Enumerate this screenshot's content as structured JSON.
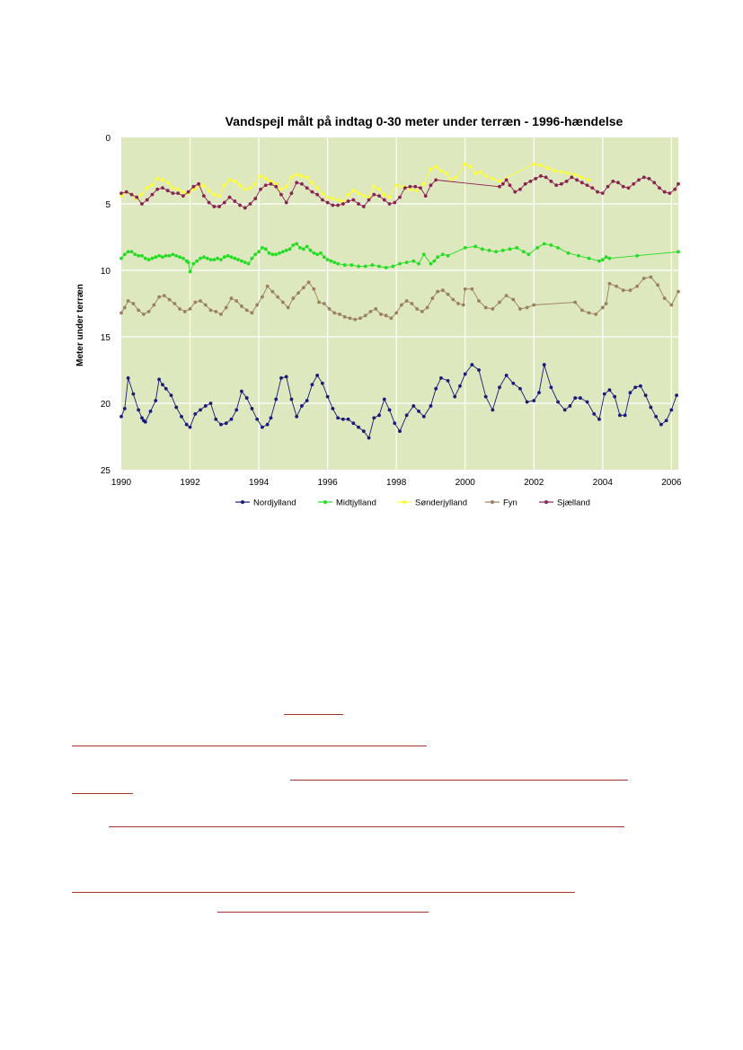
{
  "chart_data": {
    "type": "line",
    "title": "Vandspejl målt på indtag 0-30 meter under terræn  - 1996-hændelse",
    "ylabel": "Meter under terræn",
    "xlabel": "",
    "xlim": [
      1990,
      2006.2
    ],
    "ylim": [
      0,
      25
    ],
    "y_inverted": true,
    "x_ticks": [
      "1990",
      "1992",
      "1994",
      "1996",
      "1998",
      "2000",
      "2002",
      "2004",
      "2006"
    ],
    "y_ticks": [
      "0",
      "5",
      "10",
      "15",
      "20",
      "25"
    ],
    "grid": true,
    "legend_position": "bottom",
    "plot_background": "#dde8be",
    "series": [
      {
        "name": "Nordjylland",
        "color": "#1a1a7a",
        "x": [
          1990.0,
          1990.1,
          1990.2,
          1990.35,
          1990.5,
          1990.6,
          1990.65,
          1990.7,
          1990.85,
          1991.0,
          1991.1,
          1991.2,
          1991.3,
          1991.45,
          1991.6,
          1991.75,
          1991.9,
          1992.0,
          1992.15,
          1992.3,
          1992.45,
          1992.6,
          1992.75,
          1992.9,
          1993.05,
          1993.2,
          1993.35,
          1993.5,
          1993.65,
          1993.8,
          1993.95,
          1994.1,
          1994.25,
          1994.35,
          1994.5,
          1994.65,
          1994.8,
          1994.95,
          1995.1,
          1995.25,
          1995.4,
          1995.55,
          1995.7,
          1995.85,
          1996.0,
          1996.15,
          1996.3,
          1996.45,
          1996.6,
          1996.75,
          1996.9,
          1997.05,
          1997.2,
          1997.35,
          1997.5,
          1997.65,
          1997.8,
          1997.95,
          1998.1,
          1998.3,
          1998.5,
          1998.65,
          1998.8,
          1999.0,
          1999.15,
          1999.3,
          1999.5,
          1999.7,
          1999.85,
          2000.0,
          2000.2,
          2000.4,
          2000.6,
          2000.8,
          2001.0,
          2001.2,
          2001.4,
          2001.6,
          2001.8,
          2002.0,
          2002.15,
          2002.3,
          2002.5,
          2002.7,
          2002.9,
          2003.05,
          2003.2,
          2003.35,
          2003.55,
          2003.75,
          2003.9,
          2004.05,
          2004.2,
          2004.35,
          2004.5,
          2004.65,
          2004.8,
          2004.95,
          2005.1,
          2005.25,
          2005.4,
          2005.55,
          2005.7,
          2005.85,
          2006.0,
          2006.15
        ],
        "values": [
          21.0,
          20.4,
          18.1,
          19.3,
          20.5,
          21.1,
          21.3,
          21.4,
          20.6,
          19.8,
          18.2,
          18.6,
          18.9,
          19.4,
          20.3,
          21.0,
          21.6,
          21.8,
          20.8,
          20.5,
          20.2,
          20.0,
          21.2,
          21.6,
          21.5,
          21.2,
          20.5,
          19.1,
          19.6,
          20.4,
          21.2,
          21.8,
          21.6,
          21.1,
          19.7,
          18.1,
          18.0,
          19.7,
          21.0,
          20.2,
          19.8,
          18.6,
          17.9,
          18.5,
          19.5,
          20.4,
          21.1,
          21.2,
          21.2,
          21.5,
          21.8,
          22.1,
          22.6,
          21.1,
          20.9,
          19.7,
          20.5,
          21.5,
          22.1,
          20.9,
          20.2,
          20.6,
          21.0,
          20.2,
          18.9,
          18.1,
          18.3,
          19.5,
          18.7,
          17.8,
          17.1,
          17.5,
          19.5,
          20.5,
          18.8,
          17.9,
          18.5,
          18.9,
          19.9,
          19.8,
          19.2,
          17.1,
          18.8,
          19.9,
          20.5,
          20.2,
          19.6,
          19.6,
          19.9,
          20.8,
          21.2,
          19.3,
          19.0,
          19.5,
          20.9,
          20.9,
          19.2,
          18.8,
          18.7,
          19.4,
          20.3,
          21.0,
          21.6,
          21.3,
          20.5,
          19.4
        ]
      },
      {
        "name": "Midtjylland",
        "color": "#22dd22",
        "x": [
          1990.0,
          1990.1,
          1990.2,
          1990.3,
          1990.4,
          1990.5,
          1990.6,
          1990.7,
          1990.8,
          1990.9,
          1991.0,
          1991.1,
          1991.2,
          1991.3,
          1991.4,
          1991.5,
          1991.6,
          1991.7,
          1991.8,
          1991.9,
          1991.95,
          1992.0,
          1992.1,
          1992.2,
          1992.3,
          1992.4,
          1992.5,
          1992.6,
          1992.7,
          1992.8,
          1992.9,
          1993.0,
          1993.1,
          1993.2,
          1993.3,
          1993.4,
          1993.5,
          1993.6,
          1993.7,
          1993.8,
          1993.9,
          1994.0,
          1994.1,
          1994.2,
          1994.3,
          1994.4,
          1994.5,
          1994.6,
          1994.7,
          1994.8,
          1994.9,
          1995.0,
          1995.1,
          1995.2,
          1995.3,
          1995.4,
          1995.5,
          1995.6,
          1995.7,
          1995.8,
          1995.9,
          1996.0,
          1996.1,
          1996.2,
          1996.3,
          1996.5,
          1996.7,
          1996.9,
          1997.1,
          1997.3,
          1997.5,
          1997.7,
          1997.9,
          1998.1,
          1998.3,
          1998.5,
          1998.65,
          1998.8,
          1999.0,
          1999.1,
          1999.2,
          1999.35,
          1999.5,
          2000.0,
          2000.3,
          2000.5,
          2000.7,
          2000.9,
          2001.1,
          2001.3,
          2001.5,
          2001.7,
          2001.85,
          2002.1,
          2002.3,
          2002.5,
          2002.7,
          2003.0,
          2003.3,
          2003.6,
          2003.9,
          2004.0,
          2004.1,
          2004.2,
          2005.0,
          2006.2
        ],
        "values": [
          9.1,
          8.8,
          8.6,
          8.6,
          8.8,
          8.9,
          8.9,
          9.1,
          9.2,
          9.1,
          9.0,
          8.9,
          9.0,
          8.9,
          8.9,
          8.8,
          8.9,
          9.0,
          9.1,
          9.3,
          9.4,
          10.1,
          9.5,
          9.3,
          9.1,
          9.0,
          9.1,
          9.2,
          9.2,
          9.1,
          9.2,
          9.0,
          8.9,
          9.0,
          9.1,
          9.2,
          9.3,
          9.4,
          9.5,
          9.1,
          8.8,
          8.6,
          8.3,
          8.4,
          8.7,
          8.8,
          8.8,
          8.7,
          8.6,
          8.5,
          8.4,
          8.1,
          8.0,
          8.3,
          8.4,
          8.2,
          8.5,
          8.7,
          8.8,
          8.7,
          9.0,
          9.2,
          9.3,
          9.4,
          9.5,
          9.6,
          9.6,
          9.7,
          9.7,
          9.6,
          9.7,
          9.8,
          9.7,
          9.5,
          9.4,
          9.3,
          9.5,
          8.8,
          9.5,
          9.3,
          9.0,
          8.8,
          8.9,
          8.3,
          8.2,
          8.4,
          8.5,
          8.6,
          8.5,
          8.4,
          8.3,
          8.6,
          8.8,
          8.3,
          8.0,
          8.1,
          8.3,
          8.7,
          8.9,
          9.1,
          9.3,
          9.2,
          9.0,
          9.1,
          8.9,
          8.6
        ]
      },
      {
        "name": "Sønderjylland",
        "color": "#ffff33",
        "x": [
          1990.0,
          1990.15,
          1990.3,
          1990.45,
          1990.6,
          1990.75,
          1990.9,
          1991.05,
          1991.2,
          1991.35,
          1991.5,
          1991.65,
          1991.8,
          1991.95,
          1992.1,
          1992.25,
          1992.4,
          1992.55,
          1992.7,
          1992.85,
          1993.0,
          1993.15,
          1993.3,
          1993.45,
          1993.6,
          1993.75,
          1993.9,
          1994.05,
          1994.2,
          1994.35,
          1994.5,
          1994.65,
          1994.8,
          1994.95,
          1995.1,
          1995.25,
          1995.4,
          1995.55,
          1995.7,
          1995.85,
          1996.0,
          1996.15,
          1996.3,
          1996.45,
          1996.6,
          1996.75,
          1996.9,
          1997.05,
          1997.2,
          1997.35,
          1997.5,
          1997.65,
          1997.8,
          1998.0,
          1998.2,
          1998.4,
          1998.6,
          1998.8,
          1999.0,
          1999.15,
          1999.3,
          1999.45,
          1999.6,
          1999.75,
          2000.0,
          2000.15,
          2000.3,
          2000.45,
          2000.6,
          2000.8,
          2001.0,
          2002.0,
          2002.2,
          2002.4,
          2002.6,
          2002.8,
          2003.0,
          2003.2,
          2003.4,
          2003.6
        ],
        "values": [
          4.4,
          4.1,
          4.3,
          4.6,
          4.3,
          3.8,
          3.6,
          3.1,
          3.2,
          3.4,
          3.8,
          3.9,
          4.1,
          4.2,
          3.9,
          3.7,
          3.6,
          4.0,
          4.3,
          4.4,
          3.6,
          3.2,
          3.3,
          3.6,
          3.9,
          3.8,
          3.5,
          2.9,
          3.1,
          3.3,
          3.5,
          3.9,
          3.7,
          3.0,
          2.8,
          2.9,
          3.0,
          3.4,
          3.8,
          4.2,
          4.5,
          4.6,
          4.7,
          4.8,
          4.3,
          4.0,
          4.2,
          4.4,
          4.5,
          3.7,
          3.9,
          4.3,
          4.5,
          3.6,
          3.7,
          3.9,
          4.0,
          3.5,
          2.4,
          2.2,
          2.5,
          2.7,
          3.2,
          3.0,
          2.0,
          2.2,
          2.7,
          2.6,
          2.9,
          3.1,
          3.3,
          2.0,
          2.1,
          2.3,
          2.5,
          2.6,
          2.7,
          2.8,
          3.0,
          3.2
        ]
      },
      {
        "name": "Fyn",
        "color": "#9b8060",
        "x": [
          1990.0,
          1990.1,
          1990.2,
          1990.35,
          1990.5,
          1990.65,
          1990.8,
          1990.95,
          1991.1,
          1991.25,
          1991.4,
          1991.55,
          1991.7,
          1991.85,
          1992.0,
          1992.15,
          1992.3,
          1992.45,
          1992.6,
          1992.75,
          1992.9,
          1993.05,
          1993.2,
          1993.35,
          1993.5,
          1993.65,
          1993.8,
          1993.95,
          1994.1,
          1994.25,
          1994.4,
          1994.55,
          1994.7,
          1994.85,
          1995.0,
          1995.15,
          1995.3,
          1995.45,
          1995.6,
          1995.75,
          1995.9,
          1996.05,
          1996.2,
          1996.35,
          1996.5,
          1996.65,
          1996.8,
          1996.95,
          1997.1,
          1997.25,
          1997.4,
          1997.55,
          1997.7,
          1997.85,
          1998.0,
          1998.15,
          1998.3,
          1998.45,
          1998.6,
          1998.75,
          1998.9,
          1999.05,
          1999.2,
          1999.35,
          1999.5,
          1999.65,
          1999.8,
          1999.95,
          2000.0,
          2000.2,
          2000.4,
          2000.6,
          2000.8,
          2001.0,
          2001.2,
          2001.4,
          2001.6,
          2001.8,
          2002.0,
          2003.2,
          2003.4,
          2003.6,
          2003.8,
          2004.0,
          2004.1,
          2004.2,
          2004.4,
          2004.6,
          2004.8,
          2005.0,
          2005.2,
          2005.4,
          2005.6,
          2005.8,
          2006.0,
          2006.2
        ],
        "values": [
          13.2,
          12.8,
          12.3,
          12.5,
          13.0,
          13.3,
          13.1,
          12.6,
          12.0,
          11.9,
          12.2,
          12.5,
          12.9,
          13.1,
          12.9,
          12.4,
          12.3,
          12.6,
          13.0,
          13.1,
          13.3,
          12.8,
          12.1,
          12.3,
          12.7,
          13.0,
          13.2,
          12.6,
          12.0,
          11.2,
          11.6,
          12.0,
          12.4,
          12.8,
          12.1,
          11.7,
          11.3,
          10.9,
          11.4,
          12.4,
          12.5,
          12.9,
          13.2,
          13.3,
          13.5,
          13.6,
          13.7,
          13.6,
          13.4,
          13.1,
          12.9,
          13.3,
          13.4,
          13.6,
          13.2,
          12.6,
          12.3,
          12.5,
          12.9,
          13.1,
          12.8,
          12.1,
          11.6,
          11.5,
          11.8,
          12.2,
          12.5,
          12.6,
          11.4,
          11.4,
          12.3,
          12.8,
          12.9,
          12.4,
          11.9,
          12.2,
          12.9,
          12.8,
          12.6,
          12.4,
          13.0,
          13.2,
          13.3,
          12.8,
          12.5,
          11.0,
          11.2,
          11.5,
          11.5,
          11.2,
          10.6,
          10.5,
          11.1,
          12.1,
          12.6,
          11.6
        ]
      },
      {
        "name": "Sjælland",
        "color": "#8b2252",
        "x": [
          1990.0,
          1990.15,
          1990.3,
          1990.45,
          1990.6,
          1990.75,
          1990.9,
          1991.05,
          1991.2,
          1991.35,
          1991.5,
          1991.65,
          1991.8,
          1991.95,
          1992.1,
          1992.25,
          1992.4,
          1992.55,
          1992.7,
          1992.85,
          1993.0,
          1993.15,
          1993.3,
          1993.45,
          1993.6,
          1993.75,
          1993.9,
          1994.05,
          1994.2,
          1994.35,
          1994.5,
          1994.65,
          1994.8,
          1994.95,
          1995.1,
          1995.25,
          1995.4,
          1995.55,
          1995.7,
          1995.85,
          1996.0,
          1996.15,
          1996.3,
          1996.45,
          1996.6,
          1996.75,
          1996.9,
          1997.05,
          1997.2,
          1997.35,
          1997.5,
          1997.65,
          1997.8,
          1997.95,
          1998.1,
          1998.25,
          1998.4,
          1998.55,
          1998.7,
          1998.85,
          1999.0,
          1999.15,
          2001.0,
          2001.1,
          2001.2,
          2001.3,
          2001.45,
          2001.6,
          2001.75,
          2001.9,
          2002.05,
          2002.2,
          2002.35,
          2002.5,
          2002.65,
          2002.8,
          2002.95,
          2003.1,
          2003.25,
          2003.4,
          2003.55,
          2003.7,
          2003.85,
          2004.0,
          2004.15,
          2004.3,
          2004.45,
          2004.6,
          2004.75,
          2004.9,
          2005.05,
          2005.2,
          2005.35,
          2005.5,
          2005.65,
          2005.8,
          2005.95,
          2006.1,
          2006.2
        ],
        "values": [
          4.2,
          4.1,
          4.3,
          4.5,
          5.0,
          4.7,
          4.3,
          3.9,
          3.8,
          4.0,
          4.2,
          4.2,
          4.4,
          4.1,
          3.7,
          3.5,
          4.4,
          4.9,
          5.2,
          5.2,
          4.9,
          4.5,
          4.8,
          5.1,
          5.3,
          5.0,
          4.6,
          3.9,
          3.6,
          3.5,
          3.7,
          4.3,
          4.9,
          4.2,
          3.4,
          3.5,
          3.8,
          4.1,
          4.3,
          4.7,
          4.9,
          5.1,
          5.1,
          5.0,
          4.8,
          4.7,
          5.0,
          5.2,
          4.7,
          4.3,
          4.4,
          4.7,
          5.0,
          4.9,
          4.5,
          3.8,
          3.7,
          3.7,
          3.8,
          4.4,
          3.6,
          3.2,
          3.7,
          3.5,
          3.2,
          3.6,
          4.1,
          3.9,
          3.5,
          3.3,
          3.1,
          2.9,
          3.0,
          3.3,
          3.6,
          3.5,
          3.3,
          3.0,
          3.2,
          3.4,
          3.6,
          3.8,
          4.1,
          4.2,
          3.7,
          3.3,
          3.4,
          3.7,
          3.8,
          3.5,
          3.2,
          3.0,
          3.1,
          3.4,
          3.8,
          4.1,
          4.2,
          3.9,
          3.5
        ]
      }
    ]
  }
}
